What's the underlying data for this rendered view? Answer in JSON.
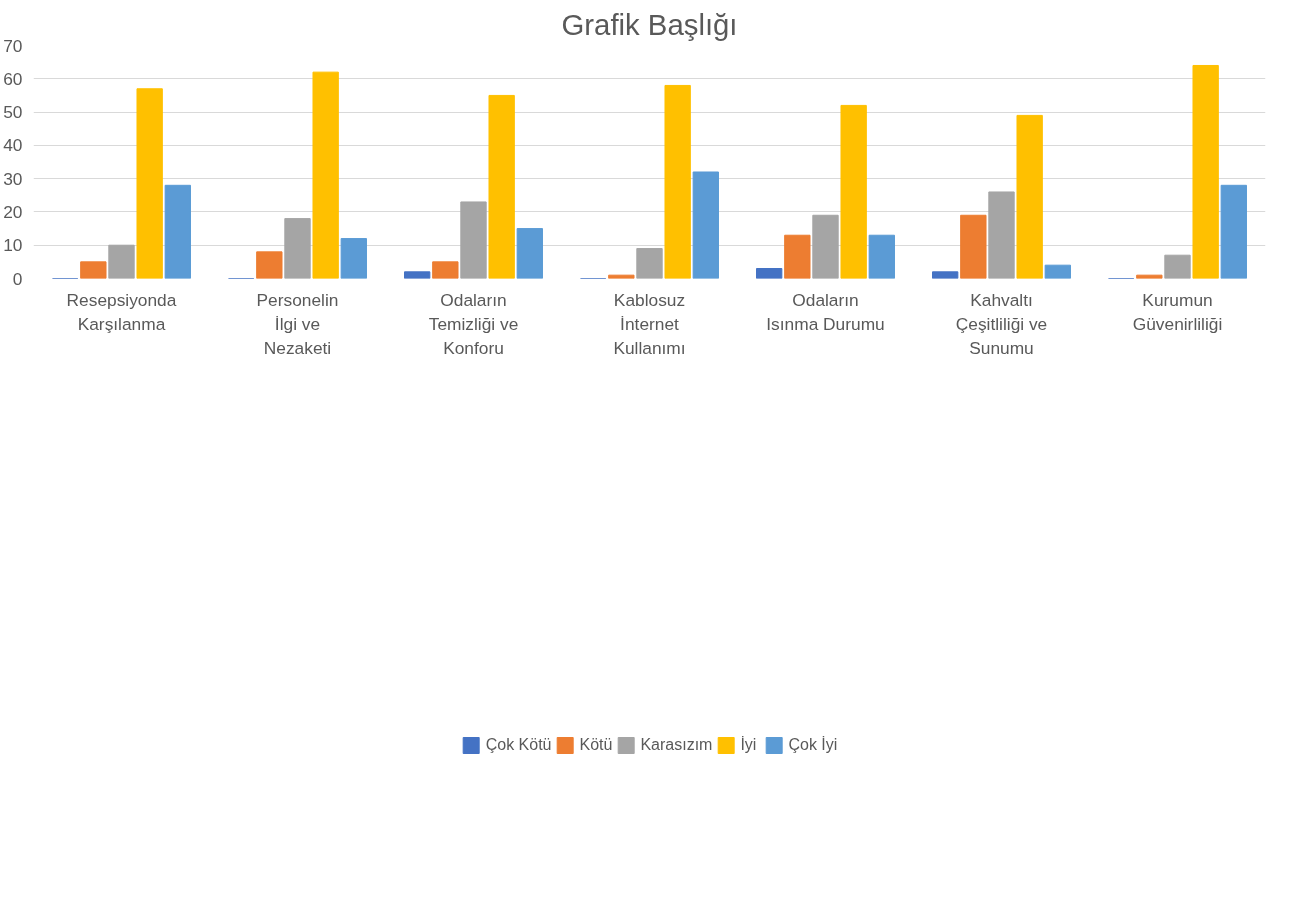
{
  "chart_data": {
    "type": "bar",
    "title": "Grafik Başlığı",
    "categories": [
      "Resepsiyonda Karşılanma",
      "Personelin İlgi ve Nezaketi",
      "Odaların Temizliği ve Konforu",
      "Kablosuz İnternet Kullanımı",
      "Odaların Isınma Durumu",
      "Kahvaltı Çeşitliliği ve Sunumu",
      "Kurumun Güvenirliliği"
    ],
    "series": [
      {
        "name": "Çok Kötü",
        "color": "#4472c4",
        "values": [
          0,
          0,
          2,
          0,
          3,
          2,
          0
        ]
      },
      {
        "name": "Kötü",
        "color": "#ed7d31",
        "values": [
          5,
          8,
          5,
          1,
          13,
          19,
          1
        ]
      },
      {
        "name": "Karasızım",
        "color": "#a5a5a5",
        "values": [
          10,
          18,
          23,
          9,
          19,
          26,
          7
        ]
      },
      {
        "name": "İyi",
        "color": "#ffc000",
        "values": [
          57,
          62,
          55,
          58,
          52,
          49,
          64
        ]
      },
      {
        "name": "Çok İyi",
        "color": "#5b9bd5",
        "values": [
          28,
          12,
          15,
          32,
          13,
          4,
          28
        ]
      }
    ],
    "ylim": [
      0,
      70
    ],
    "yticks": [
      0,
      10,
      20,
      30,
      40,
      50,
      60,
      70
    ],
    "grid": "y",
    "legend": "bottom"
  }
}
